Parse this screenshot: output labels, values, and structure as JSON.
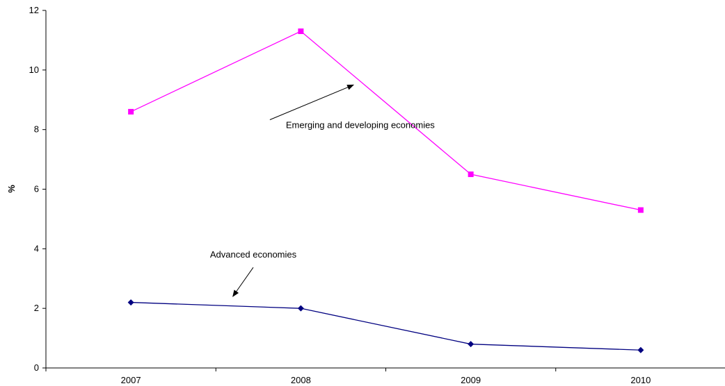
{
  "chart_data": {
    "type": "line",
    "title": "",
    "xlabel": "",
    "ylabel": "%",
    "categories": [
      "2007",
      "2008",
      "2009",
      "2010"
    ],
    "ylim": [
      0,
      12
    ],
    "yticks": [
      0,
      2,
      4,
      6,
      8,
      10,
      12
    ],
    "grid": false,
    "legend": "none",
    "series": [
      {
        "name": "Emerging and developing economies",
        "color": "#ff00ff",
        "marker": "square",
        "values": [
          8.6,
          11.3,
          6.5,
          5.3
        ]
      },
      {
        "name": "Advanced economies",
        "color": "#000080",
        "marker": "diamond",
        "values": [
          2.2,
          2.0,
          0.8,
          0.6
        ]
      }
    ],
    "annotations": [
      {
        "text": "Emerging and developing economies",
        "series_index": 0,
        "label_at": {
          "x": 1.35,
          "y": 8.05
        },
        "arrow_to": {
          "x": 1.31,
          "y": 9.5
        }
      },
      {
        "text": "Advanced economies",
        "series_index": 1,
        "label_at": {
          "x": 0.72,
          "y": 3.7
        },
        "arrow_to": {
          "x": 0.6,
          "y": 2.4
        }
      }
    ]
  }
}
